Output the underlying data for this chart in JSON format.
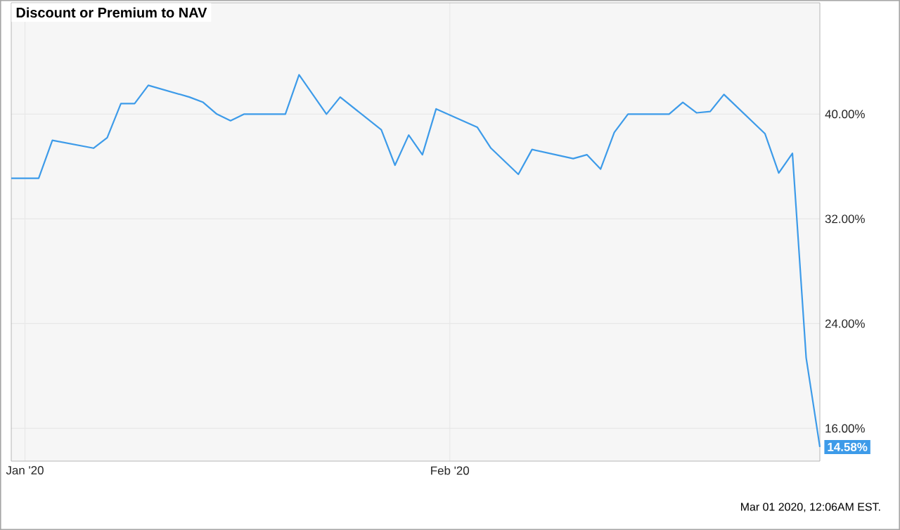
{
  "chart_data": {
    "type": "line",
    "title": "Discount or Premium to NAV",
    "x": [
      "2019-12-31",
      "2020-01-02",
      "2020-01-03",
      "2020-01-06",
      "2020-01-07",
      "2020-01-08",
      "2020-01-09",
      "2020-01-10",
      "2020-01-13",
      "2020-01-14",
      "2020-01-15",
      "2020-01-16",
      "2020-01-17",
      "2020-01-20",
      "2020-01-21",
      "2020-01-23",
      "2020-01-24",
      "2020-01-27",
      "2020-01-28",
      "2020-01-29",
      "2020-01-30",
      "2020-01-31",
      "2020-02-03",
      "2020-02-04",
      "2020-02-06",
      "2020-02-07",
      "2020-02-10",
      "2020-02-11",
      "2020-02-12",
      "2020-02-13",
      "2020-02-14",
      "2020-02-17",
      "2020-02-18",
      "2020-02-19",
      "2020-02-20",
      "2020-02-21",
      "2020-02-24",
      "2020-02-25",
      "2020-02-26",
      "2020-02-27",
      "2020-02-28"
    ],
    "series": [
      {
        "color": "#3d9be9",
        "values": [
          35.1,
          35.1,
          38.0,
          37.4,
          38.2,
          40.8,
          40.8,
          42.2,
          41.3,
          40.9,
          40.0,
          39.5,
          40.0,
          40.0,
          43.0,
          40.0,
          41.3,
          38.8,
          36.1,
          38.4,
          36.9,
          40.4,
          39.0,
          37.4,
          35.4,
          37.3,
          36.6,
          36.9,
          35.8,
          38.6,
          40.0,
          40.0,
          40.9,
          40.1,
          40.2,
          41.5,
          38.5,
          35.5,
          37.0,
          21.4,
          14.58
        ],
        "value_labels": [
          null,
          null,
          null,
          null,
          null,
          null,
          null,
          null,
          null,
          null,
          null,
          null,
          null,
          null,
          null,
          null,
          null,
          null,
          null,
          null,
          null,
          null,
          null,
          null,
          null,
          null,
          null,
          null,
          null,
          null,
          null,
          null,
          null,
          null,
          null,
          null,
          null,
          null,
          null,
          null,
          "14.58%"
        ]
      }
    ],
    "xlim": [
      "2019-12-31",
      "2020-02-28"
    ],
    "xticks": [
      {
        "value": "2020-01-01",
        "label": "Jan '20"
      },
      {
        "value": "2020-02-01",
        "label": "Feb '20"
      }
    ],
    "ylim": [
      13.5,
      48.5
    ],
    "yticks": [
      {
        "value": 16,
        "label": "16.00%"
      },
      {
        "value": 24,
        "label": "24.00%"
      },
      {
        "value": 32,
        "label": "32.00%"
      },
      {
        "value": 40,
        "label": "40.00%"
      }
    ],
    "grid": true,
    "marker": "none",
    "line_style": "solid",
    "annotations": [
      "Mar 01 2020, 12:06AM EST."
    ]
  }
}
